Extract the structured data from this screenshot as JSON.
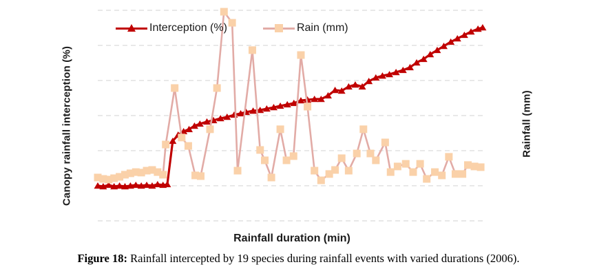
{
  "figure": {
    "left_axis_label": "Canopy rainfall interception (%)",
    "right_axis_label": "Rainfall (mm)",
    "x_axis_label": "Rainfall duration (min)",
    "caption_prefix": "Figure 18:",
    "caption_text": " Rainfall intercepted by 19 species during rainfall events with varied durations (2006)."
  },
  "legend": {
    "items": [
      {
        "label": "Interception (%)",
        "marker": "triangle",
        "color": "#C00000"
      },
      {
        "label": "Rain (mm)",
        "marker": "square",
        "line_color": "#E2ABA6",
        "marker_color": "#FAD1A9"
      }
    ]
  },
  "colors": {
    "interception": "#C00000",
    "rain_line": "#E2ABA6",
    "rain_marker": "#FAD1A9",
    "gridline": "#D9D9D9",
    "label_text": "#1a1a1a"
  },
  "chart_data": {
    "type": "line",
    "title": "",
    "xlabel": "Rainfall duration (min)",
    "ylabel_left": "Canopy rainfall interception (%)",
    "ylabel_right": "Rainfall (mm)",
    "grid": "horizontal-dashed",
    "legend_position": "top-center",
    "axis_tick_labels_visible": false,
    "x_unit": "percent-of-axis-span (no numeric tick labels shown)",
    "y_unit": "gridline-units (7 dashed gridlines, 0 at bottom, 20 per gridline, 120 at top)",
    "ylim": [
      0,
      120
    ],
    "gridline_step": 20,
    "series": [
      {
        "name": "Interception (%)",
        "axis": "left",
        "marker": "triangle",
        "color": "#C00000",
        "points": [
          [
            0,
            20.0
          ],
          [
            1.4,
            19.6
          ],
          [
            2.8,
            20.4
          ],
          [
            4.2,
            19.6
          ],
          [
            5.6,
            20.0
          ],
          [
            7.0,
            19.6
          ],
          [
            8.4,
            20.0
          ],
          [
            9.8,
            20.4
          ],
          [
            11.2,
            20.0
          ],
          [
            12.6,
            20.4
          ],
          [
            14.0,
            20.0
          ],
          [
            15.4,
            20.8
          ],
          [
            16.8,
            20.4
          ],
          [
            17.9,
            20.8
          ],
          [
            19.3,
            45.5
          ],
          [
            20.7,
            49.0
          ],
          [
            22.1,
            51.0
          ],
          [
            23.5,
            52.2
          ],
          [
            24.9,
            54.1
          ],
          [
            26.3,
            55.3
          ],
          [
            28.1,
            56.5
          ],
          [
            29.8,
            57.3
          ],
          [
            31.6,
            58.4
          ],
          [
            33.3,
            59.2
          ],
          [
            35.1,
            60.4
          ],
          [
            36.8,
            61.2
          ],
          [
            38.2,
            62.0
          ],
          [
            40.0,
            62.7
          ],
          [
            41.8,
            63.1
          ],
          [
            43.5,
            63.9
          ],
          [
            45.3,
            64.7
          ],
          [
            47.0,
            65.5
          ],
          [
            48.8,
            66.3
          ],
          [
            50.5,
            67.1
          ],
          [
            52.3,
            68.6
          ],
          [
            54.0,
            69.0
          ],
          [
            55.8,
            69.4
          ],
          [
            57.5,
            69.4
          ],
          [
            59.3,
            71.4
          ],
          [
            61.1,
            74.5
          ],
          [
            62.8,
            74.1
          ],
          [
            64.6,
            76.5
          ],
          [
            66.3,
            77.6
          ],
          [
            68.1,
            76.5
          ],
          [
            69.8,
            79.6
          ],
          [
            71.6,
            81.6
          ],
          [
            73.3,
            82.7
          ],
          [
            75.1,
            83.5
          ],
          [
            76.8,
            84.7
          ],
          [
            78.6,
            85.9
          ],
          [
            80.4,
            87.5
          ],
          [
            82.1,
            90.2
          ],
          [
            83.9,
            92.2
          ],
          [
            85.6,
            94.9
          ],
          [
            87.4,
            97.3
          ],
          [
            89.1,
            99.6
          ],
          [
            90.9,
            102.0
          ],
          [
            92.6,
            103.9
          ],
          [
            94.4,
            105.9
          ],
          [
            96.1,
            107.8
          ],
          [
            97.9,
            109.4
          ],
          [
            99.1,
            110.2
          ]
        ]
      },
      {
        "name": "Rain (mm)",
        "axis": "right",
        "marker": "square",
        "line_color": "#E2ABA6",
        "marker_color": "#FAD1A9",
        "points": [
          [
            0,
            24.7
          ],
          [
            1.4,
            23.9
          ],
          [
            2.8,
            23.5
          ],
          [
            4.2,
            24.3
          ],
          [
            5.6,
            25.1
          ],
          [
            7.0,
            26.3
          ],
          [
            8.4,
            27.1
          ],
          [
            9.8,
            27.8
          ],
          [
            11.2,
            27.5
          ],
          [
            12.6,
            28.6
          ],
          [
            14.0,
            29.0
          ],
          [
            15.4,
            27.8
          ],
          [
            16.8,
            26.3
          ],
          [
            17.5,
            43.5
          ],
          [
            19.8,
            75.7
          ],
          [
            21.6,
            47.5
          ],
          [
            23.3,
            42.7
          ],
          [
            25.1,
            25.9
          ],
          [
            26.5,
            25.5
          ],
          [
            28.9,
            52.2
          ],
          [
            30.7,
            75.7
          ],
          [
            32.5,
            119.2
          ],
          [
            34.6,
            112.9
          ],
          [
            36.0,
            28.6
          ],
          [
            39.8,
            97.3
          ],
          [
            41.8,
            40.4
          ],
          [
            43.0,
            34.5
          ],
          [
            44.7,
            24.7
          ],
          [
            47.0,
            52.2
          ],
          [
            48.6,
            34.5
          ],
          [
            50.4,
            36.9
          ],
          [
            52.3,
            94.5
          ],
          [
            54.0,
            65.1
          ],
          [
            55.8,
            28.6
          ],
          [
            57.5,
            23.1
          ],
          [
            59.6,
            26.7
          ],
          [
            61.1,
            29.0
          ],
          [
            62.8,
            35.7
          ],
          [
            64.6,
            28.6
          ],
          [
            66.7,
            38.4
          ],
          [
            68.4,
            52.2
          ],
          [
            70.2,
            38.4
          ],
          [
            71.6,
            34.5
          ],
          [
            74.0,
            44.7
          ],
          [
            75.4,
            27.8
          ],
          [
            77.2,
            31.0
          ],
          [
            79.3,
            32.5
          ],
          [
            81.2,
            27.8
          ],
          [
            83.0,
            32.5
          ],
          [
            84.7,
            23.9
          ],
          [
            86.8,
            27.8
          ],
          [
            88.6,
            25.9
          ],
          [
            90.4,
            36.5
          ],
          [
            92.1,
            26.7
          ],
          [
            93.9,
            26.7
          ],
          [
            95.3,
            31.8
          ],
          [
            97.0,
            31.0
          ],
          [
            98.6,
            30.6
          ]
        ]
      }
    ]
  }
}
